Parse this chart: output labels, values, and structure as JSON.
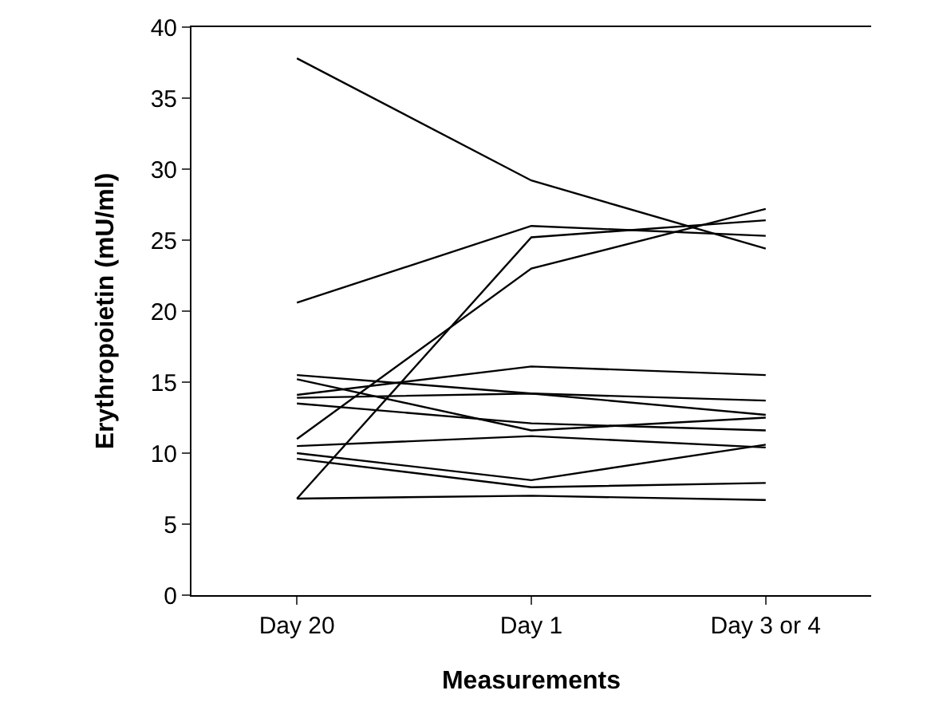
{
  "chart_data": {
    "type": "line",
    "xlabel": "Measurements",
    "ylabel": "Erythropoietin (mU/ml)",
    "categories": [
      "Day 20",
      "Day 1",
      "Day 3 or 4"
    ],
    "ylim": [
      0,
      40
    ],
    "yticks": [
      0,
      5,
      10,
      15,
      20,
      25,
      30,
      35,
      40
    ],
    "grid": false,
    "marker": "none",
    "line_style": "solid",
    "series": [
      {
        "color": "#000000",
        "values": [
          37.8,
          29.2,
          24.4
        ]
      },
      {
        "color": "#000000",
        "values": [
          20.6,
          26.0,
          25.3
        ]
      },
      {
        "color": "#000000",
        "values": [
          6.8,
          25.2,
          26.4
        ]
      },
      {
        "color": "#000000",
        "values": [
          11.0,
          23.0,
          27.2
        ]
      },
      {
        "color": "#000000",
        "values": [
          15.5,
          14.2,
          12.7
        ]
      },
      {
        "color": "#000000",
        "values": [
          15.2,
          11.6,
          12.5
        ]
      },
      {
        "color": "#000000",
        "values": [
          14.1,
          16.1,
          15.5
        ]
      },
      {
        "color": "#000000",
        "values": [
          13.9,
          14.2,
          13.7
        ]
      },
      {
        "color": "#000000",
        "values": [
          13.5,
          12.1,
          11.6
        ]
      },
      {
        "color": "#000000",
        "values": [
          10.5,
          11.2,
          10.4
        ]
      },
      {
        "color": "#000000",
        "values": [
          10.0,
          8.1,
          10.6
        ]
      },
      {
        "color": "#000000",
        "values": [
          9.6,
          7.6,
          7.9
        ]
      },
      {
        "color": "#000000",
        "values": [
          6.8,
          7.0,
          6.7
        ]
      }
    ]
  }
}
